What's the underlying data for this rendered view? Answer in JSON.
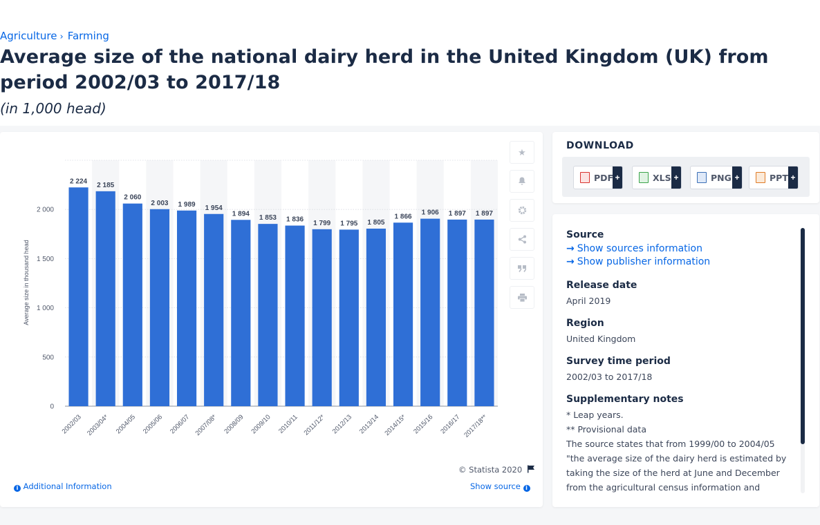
{
  "breadcrumb": {
    "items": [
      "Agriculture",
      "Farming"
    ]
  },
  "title": "Average size of the national dairy herd in the United Kingdom (UK) from period 2002/03 to 2017/18",
  "subtitle": "(in 1,000 head)",
  "chart_data": {
    "type": "bar",
    "title": "",
    "ylabel": "Average size in thousand head",
    "xlabel": "",
    "ylim": [
      0,
      2500
    ],
    "yticks": [
      0,
      500,
      1000,
      1500,
      2000
    ],
    "ytick_labels": [
      "0",
      "500",
      "1 000",
      "1 500",
      "2 000"
    ],
    "grid": true,
    "bar_color": "#2f6fd6",
    "categories": [
      "2002/03",
      "2003/04*",
      "2004/05",
      "2005/06",
      "2006/07",
      "2007/08*",
      "2008/09",
      "2009/10",
      "2010/11",
      "2011/12*",
      "2012/13",
      "2013/14",
      "2014/15*",
      "2015/16",
      "2016/17",
      "2017/18**"
    ],
    "values": [
      2224,
      2185,
      2060,
      2003,
      1989,
      1954,
      1894,
      1853,
      1836,
      1799,
      1795,
      1805,
      1866,
      1906,
      1897,
      1897
    ],
    "data_labels": [
      "2 224",
      "2 185",
      "2 060",
      "2 003",
      "1 989",
      "1 954",
      "1 894",
      "1 853",
      "1 836",
      "1 799",
      "1 795",
      "1 805",
      "1 866",
      "1 906",
      "1 897",
      "1 897"
    ]
  },
  "chart_footer": {
    "copyright": "© Statista 2020",
    "additional_info": "Additional Information",
    "show_source": "Show source"
  },
  "tools": [
    "star-icon",
    "bell-icon",
    "gear-icon",
    "share-icon",
    "quote-icon",
    "print-icon"
  ],
  "download": {
    "title": "DOWNLOAD",
    "buttons": [
      {
        "label": "PDF",
        "color": "#d9322e"
      },
      {
        "label": "XLS",
        "color": "#3aa44a"
      },
      {
        "label": "PNG",
        "color": "#3b6fb6"
      },
      {
        "label": "PPT",
        "color": "#e07a24"
      }
    ],
    "plus": "+"
  },
  "info": {
    "source_h": "Source",
    "source_link1": "Show sources information",
    "source_link2": "Show publisher information",
    "release_h": "Release date",
    "release_v": "April 2019",
    "region_h": "Region",
    "region_v": "United Kingdom",
    "survey_h": "Survey time period",
    "survey_v": "2002/03 to 2017/18",
    "notes_h": "Supplementary notes",
    "note1": "* Leap years.",
    "note2": "** Provisional data",
    "note3": "The source states that from 1999/00 to 2004/05 \"the average size of the dairy herd is estimated by taking the size of the herd at June and December from the agricultural census information and"
  }
}
